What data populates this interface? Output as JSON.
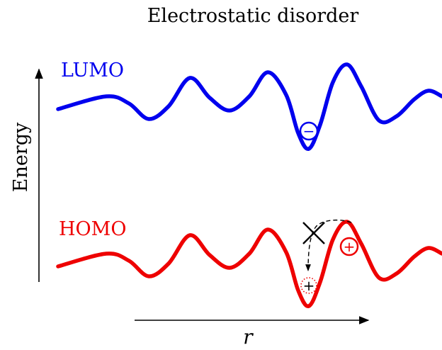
{
  "title": "Electrostatic disorder",
  "y_axis_label": "Energy",
  "x_axis_label": "r",
  "levels": {
    "lumo": {
      "label": "LUMO",
      "color": "#0000ee"
    },
    "homo": {
      "label": "HOMO",
      "color": "#ee0000"
    }
  },
  "charges": {
    "electron": "−",
    "hole": "+",
    "hole_virtual": "+"
  },
  "colors": {
    "axis": "#000000",
    "dashed_path": "#000000",
    "forbidden_mark": "#000000"
  },
  "icons": {
    "forbidden_mark": "x-cross-icon",
    "hop_path": "dashed-arrow-icon"
  }
}
